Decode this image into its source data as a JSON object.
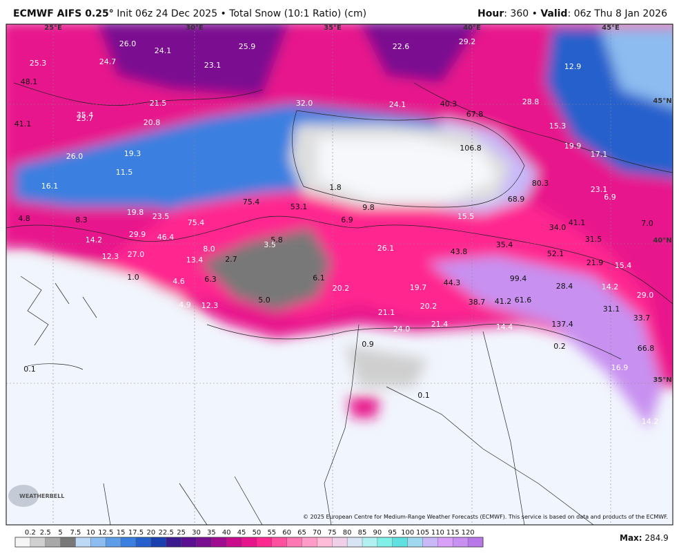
{
  "header": {
    "model": "ECMWF AIFS 0.25°",
    "description": "Init 06z 24 Dec 2025 • Total Snow (10:1 Ratio) (cm)",
    "hour_label": "Hour",
    "hour_value": ": 360 •",
    "valid_label": "Valid",
    "valid_value": ": 06z Thu 8 Jan 2026"
  },
  "map": {
    "lon_labels": [
      "25°E",
      "30°E",
      "35°E",
      "40°E",
      "45°E"
    ],
    "lat_labels": [
      "45°N",
      "40°N",
      "35°N"
    ],
    "labels": [
      "25.3",
      "26.0",
      "24.1",
      "24.7",
      "25.9",
      "23.1",
      "22.6",
      "29.2",
      "48.1",
      "21.5",
      "32.0",
      "24.1",
      "40.3",
      "67.8",
      "28.8",
      "12.9",
      "35.4",
      "25.7",
      "41.1",
      "20.8",
      "15.3",
      "19.3",
      "26.0",
      "106.8",
      "19.9",
      "17.1",
      "11.5",
      "16.1",
      "80.3",
      "1.8",
      "23.1",
      "75.4",
      "53.1",
      "9.8",
      "68.9",
      "6.9",
      "19.8",
      "23.5",
      "4.8",
      "8.3",
      "75.4",
      "6.9",
      "15.5",
      "34.0",
      "41.1",
      "7.0",
      "29.9",
      "46.4",
      "14.2",
      "5.8",
      "3.5",
      "26.1",
      "35.4",
      "31.5",
      "12.3",
      "27.0",
      "13.4",
      "8.0",
      "2.7",
      "43.8",
      "52.1",
      "21.9",
      "15.4",
      "1.0",
      "6.3",
      "6.1",
      "99.4",
      "44.3",
      "4.6",
      "20.2",
      "19.7",
      "28.4",
      "14.2",
      "29.0",
      "5.0",
      "38.7",
      "41.2",
      "61.6",
      "20.2",
      "4.9",
      "12.3",
      "31.1",
      "33.7",
      "21.1",
      "137.4",
      "24.0",
      "21.4",
      "14.4",
      "0.9",
      "0.2",
      "66.8",
      "0.1",
      "16.9",
      "0.1",
      "14.2"
    ],
    "logo": "WEATHERBELL",
    "copyright": "© 2025 European Centre for Medium-Range Weather Forecasts (ECMWF). This service is based on data and products of the ECMWF."
  },
  "colorbar": {
    "levels": [
      0.2,
      2.5,
      5,
      7.5,
      10,
      12.5,
      15,
      17.5,
      20,
      22.5,
      25,
      30,
      35,
      40,
      45,
      50,
      55,
      60,
      65,
      70,
      75,
      80,
      85,
      90,
      95,
      100,
      105,
      110,
      115,
      120
    ],
    "colors": [
      "#f5f5f5",
      "#d0d0d0",
      "#a8a8a8",
      "#787878",
      "#bcd8f5",
      "#8cbcf0",
      "#5e9ee8",
      "#3a7fe0",
      "#2560cc",
      "#1a40b0",
      "#3c1a90",
      "#5a1090",
      "#7a0e90",
      "#a00c90",
      "#c80c8c",
      "#e8148c",
      "#ff2890",
      "#ff50a0",
      "#ff78b4",
      "#ff9cc8",
      "#ffbcd8",
      "#f0d0e8",
      "#d8e4f4",
      "#b0f0f0",
      "#80f0e8",
      "#60e0e0",
      "#a0d8f0",
      "#c8b8f8",
      "#d8a0f8",
      "#c890f0",
      "#b878e8"
    ]
  },
  "max": {
    "label": "Max:",
    "value": 284.9
  }
}
